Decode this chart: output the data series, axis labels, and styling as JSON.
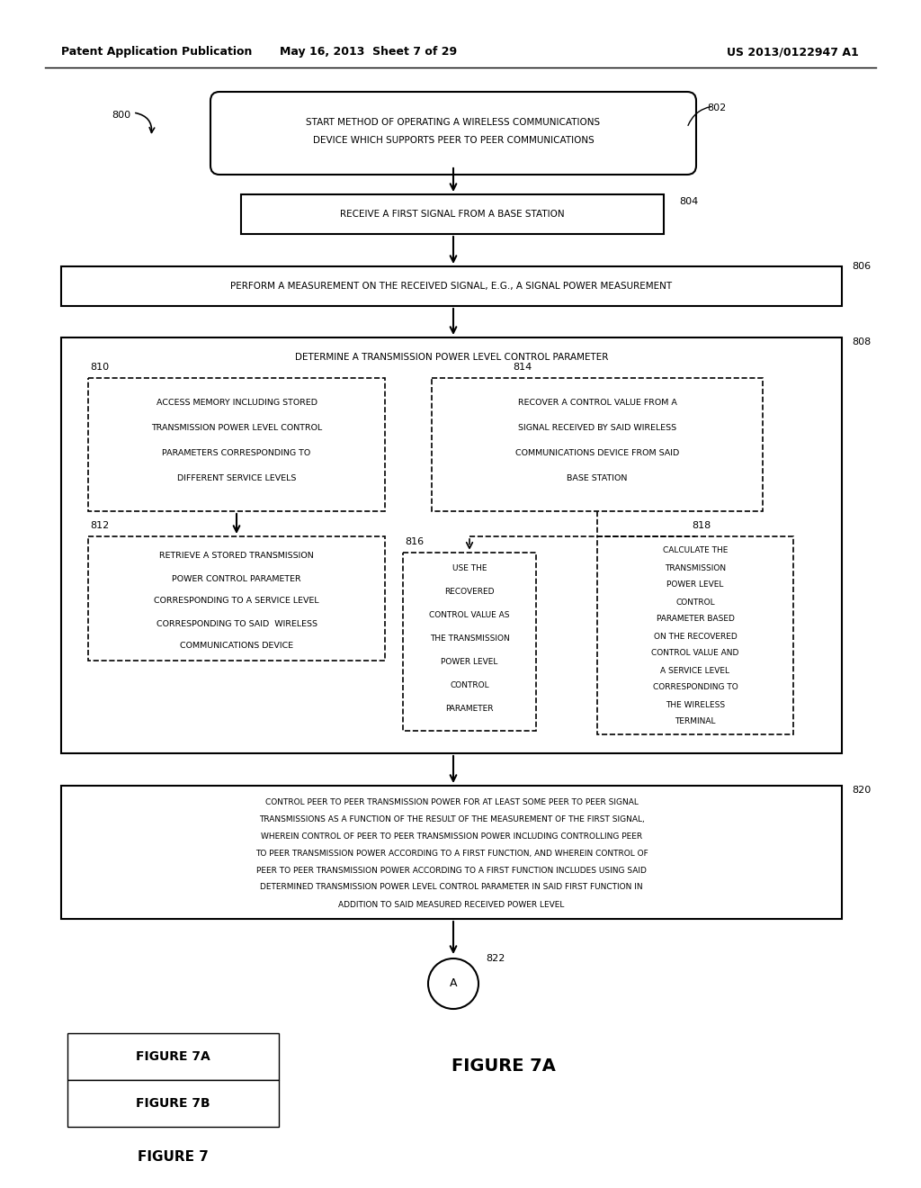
{
  "header_left": "Patent Application Publication",
  "header_mid": "May 16, 2013  Sheet 7 of 29",
  "header_right": "US 2013/0122947 A1",
  "label_800": "800",
  "label_802": "802",
  "label_804": "804",
  "label_806": "806",
  "label_808": "808",
  "label_810": "810",
  "label_812": "812",
  "label_814": "814",
  "label_816": "816",
  "label_818": "818",
  "label_820": "820",
  "label_822": "822",
  "background_color": "#ffffff",
  "text_color": "#000000"
}
